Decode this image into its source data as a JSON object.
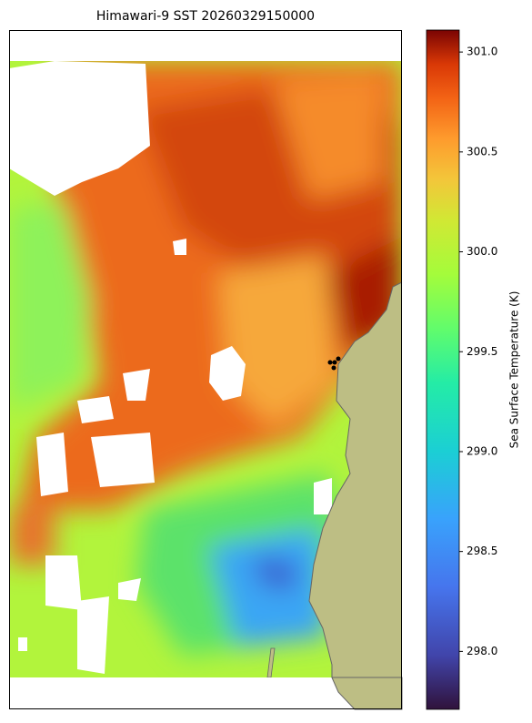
{
  "title": "Himawari-9 SST 20260329150000",
  "colorbar": {
    "label": "Sea Surface Temperature (K)",
    "lim": [
      297.71,
      301.11
    ],
    "ticks": [
      {
        "value": 298,
        "label": "298.0"
      },
      {
        "value": 298.5,
        "label": "298.5"
      },
      {
        "value": 299,
        "label": "299.0"
      },
      {
        "value": 299.5,
        "label": "299.5"
      },
      {
        "value": 300,
        "label": "300.0"
      },
      {
        "value": 300.5,
        "label": "300.5"
      },
      {
        "value": 301,
        "label": "301.0"
      }
    ]
  }
}
